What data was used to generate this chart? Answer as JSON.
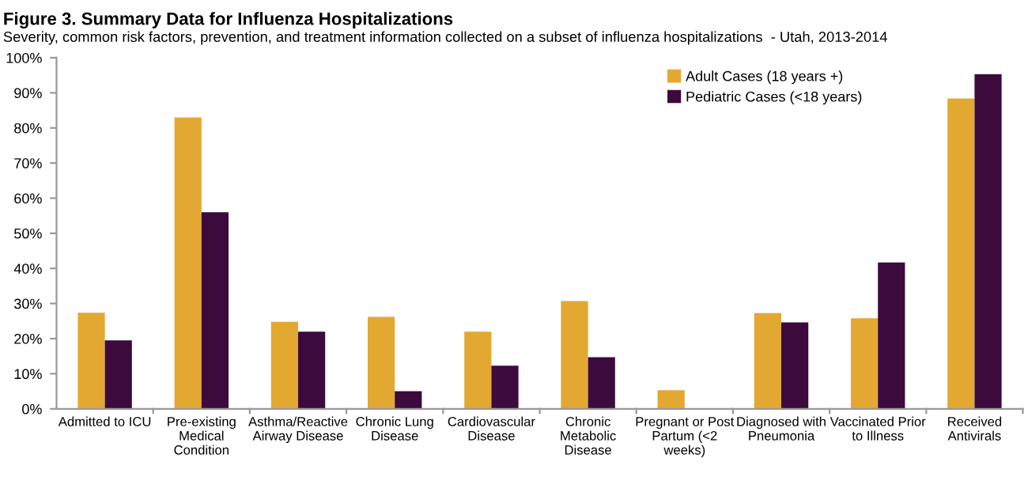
{
  "chart_data": {
    "type": "bar",
    "title": "Figure 3. Summary Data for Influenza Hospitalizations",
    "subtitle": "Severity, common risk factors, prevention, and treatment information collected on a subset of influenza hospitalizations  - Utah, 2013-2014",
    "categories": [
      "Admitted to ICU",
      "Pre-existing\nMedical\nCondition",
      "Asthma/Reactive\nAirway Disease",
      "Chronic Lung\nDisease",
      "Cardiovascular\nDisease",
      "Chronic\nMetabolic\nDisease",
      "Pregnant or Post\nPartum (<2\nweeks)",
      "Diagnosed with\nPneumonia",
      "Vaccinated Prior\nto Illness",
      "Received\nAntivirals"
    ],
    "series": [
      {
        "name": "Adult Cases (18 years +)",
        "color": "#e3a832",
        "values": [
          27.4,
          83,
          24.8,
          26.2,
          22,
          30.7,
          5.3,
          27.3,
          25.8,
          88.4
        ]
      },
      {
        "name": "Pediatric Cases (<18 years)",
        "color": "#3d0a3d",
        "values": [
          19.5,
          56,
          22,
          5,
          12.3,
          14.7,
          null,
          24.6,
          41.7,
          95.3
        ]
      }
    ],
    "ylim": [
      0,
      100
    ],
    "yticks": [
      {
        "value": 0,
        "label": "0%"
      },
      {
        "value": 10,
        "label": "10%"
      },
      {
        "value": 20,
        "label": "20%"
      },
      {
        "value": 30,
        "label": "30%"
      },
      {
        "value": 40,
        "label": "40%"
      },
      {
        "value": 50,
        "label": "50%"
      },
      {
        "value": 60,
        "label": "60%"
      },
      {
        "value": 70,
        "label": "70%"
      },
      {
        "value": 80,
        "label": "80%"
      },
      {
        "value": 90,
        "label": "90%"
      },
      {
        "value": 100,
        "label": "100%"
      }
    ],
    "grid": false,
    "legend": "top right"
  }
}
